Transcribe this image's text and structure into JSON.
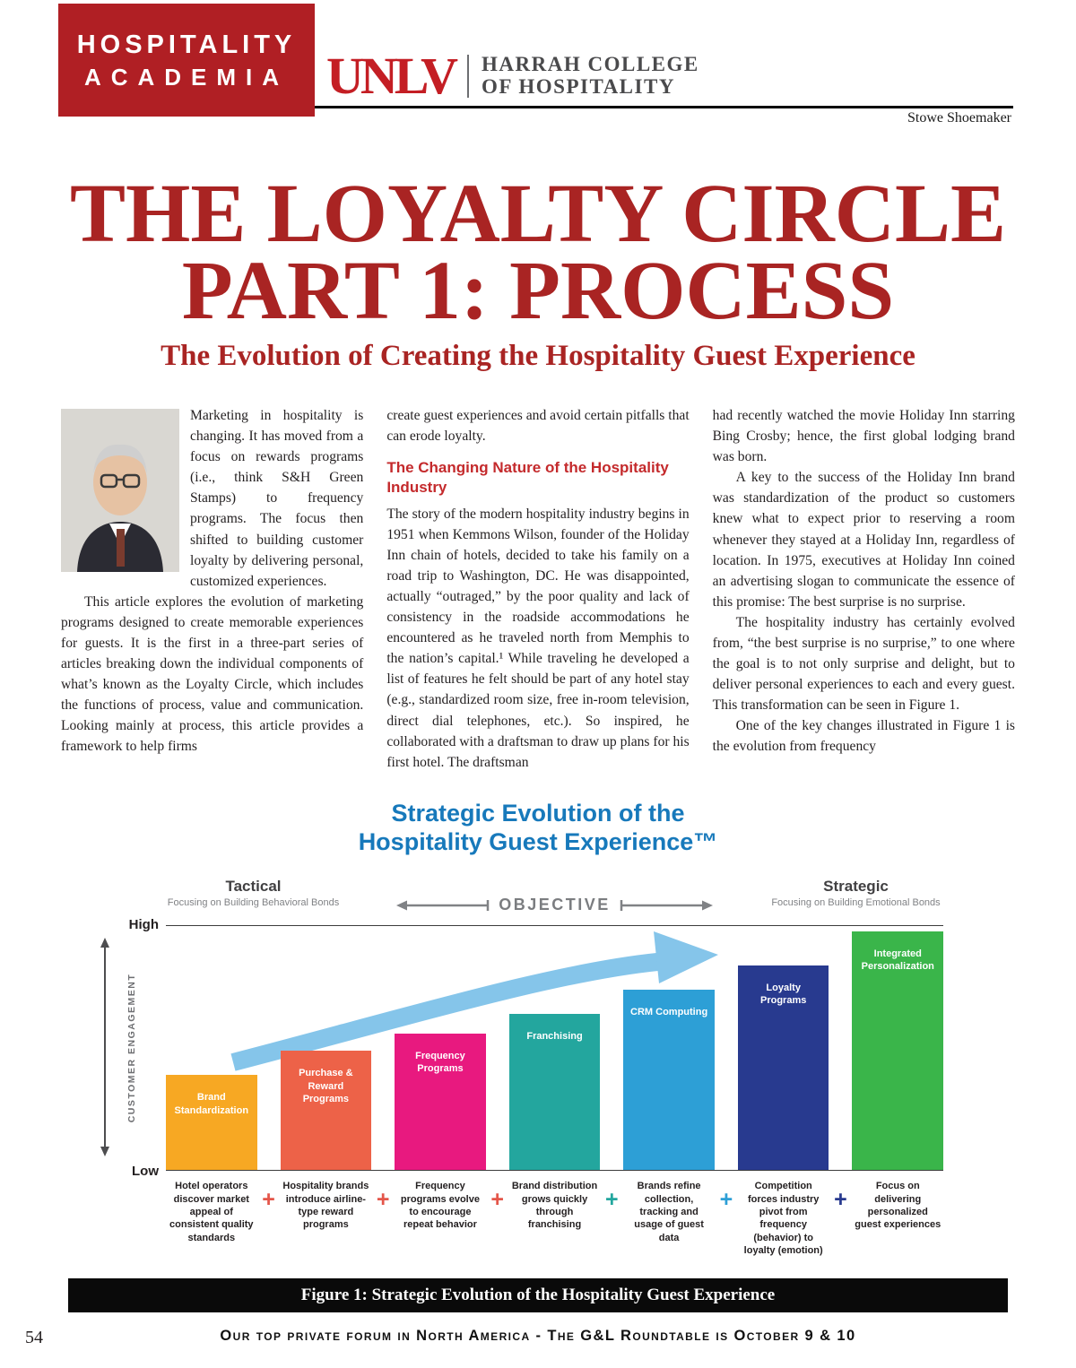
{
  "theme": {
    "brand_red": "#b01f24",
    "title_red": "#a92423",
    "heading_red": "#c42a2c",
    "chart_blue": "#1779bb",
    "unlv_red": "#c41e24",
    "arrow_blue": "#85c5ea"
  },
  "header": {
    "banner_line1": "HOSPITALITY",
    "banner_line2": "ACADEMIA",
    "logo_text": "UNLV",
    "college_line1": "HARRAH COLLEGE",
    "college_line2": "OF HOSPITALITY",
    "author": "Stowe Shoemaker"
  },
  "title": {
    "line1": "THE LOYALTY CIRCLE",
    "line2": "PART 1: PROCESS",
    "subtitle": "The Evolution of Creating the Hospitality Guest Experience"
  },
  "article": {
    "col1": {
      "p1": "Marketing in hospitality is changing. It has moved from a focus on rewards programs (i.e., think S&H Green Stamps) to frequency programs. The focus then shifted to building customer loyalty by delivering personal, customized experiences.",
      "p2": "This article explores the evolution of marketing programs designed to create memorable experiences for guests. It is the first in a three-part series of articles breaking down the individual components of what’s known as the Loyalty Circle, which includes the functions of process, value and communication. Looking mainly at process, this article provides a framework to help firms"
    },
    "col2": {
      "p1": "create guest experiences and avoid certain pitfalls that can erode loyalty.",
      "heading": "The Changing Nature of the Hospitality Industry",
      "p2": "The story of the modern hospitality industry begins in 1951 when Kemmons Wilson, founder of the Holiday Inn chain of hotels, decided to take his family on a road trip to Washington, DC. He was disappointed, actually “outraged,” by the poor quality and lack of consistency in the roadside accommodations he encountered as he traveled north from Memphis to the nation’s capital.¹ While traveling he developed a list of features he felt should be part of any hotel stay (e.g., standardized room size, free in-room television, direct dial telephones, etc.). So inspired, he collaborated with a draftsman to draw up plans for his first hotel. The draftsman"
    },
    "col3": {
      "p1": "had recently watched the movie Holiday Inn starring Bing Crosby; hence, the first global lodging brand was born.",
      "p2": "A key to the success of the Holiday Inn brand was standardization of the product so customers knew what to expect prior to reserving a room whenever they stayed at a Holiday Inn, regardless of location. In 1975, executives at Holiday Inn coined an advertising slogan to communicate the essence of this promise: The best surprise is no surprise.",
      "p3": "The hospitality industry has certainly evolved from, “the best surprise is no surprise,” to one where the goal is to not only surprise and delight, but to deliver personal experiences to each and every guest. This transformation can be seen in Figure 1.",
      "p4": "One of the key changes illustrated in Figure 1 is the evolution from frequency"
    }
  },
  "figure_caption": "Figure 1: Strategic Evolution of the Hospitality Guest Experience",
  "footer": {
    "page_number": "54",
    "banner_text": "Our top private forum in North America - The G&L Roundtable is October 9 & 10"
  },
  "chart_data": {
    "type": "bar",
    "title": "Strategic Evolution of the Hospitality Guest Experience™",
    "title_line1": "Strategic Evolution of the",
    "title_line2": "Hospitality Guest Experience™",
    "ylabel": "CUSTOMER ENGAGEMENT",
    "y_axis_top": "High",
    "y_axis_bottom": "Low",
    "ylim": [
      "Low",
      "High"
    ],
    "objective_label": "OBJECTIVE",
    "left_anchor": {
      "label": "Tactical",
      "sub": "Focusing on Building Behavioral Bonds"
    },
    "right_anchor": {
      "label": "Strategic",
      "sub": "Focusing on Building Emotional Bonds"
    },
    "categories": [
      "Brand Standardization",
      "Purchase & Reward Programs",
      "Frequency Programs",
      "Franchising",
      "CRM Computing",
      "Loyalty Programs",
      "Integrated Personalization"
    ],
    "values": [
      39,
      49,
      56,
      64,
      74,
      84,
      98
    ],
    "value_scale": "relative customer engagement, Low=0 to High=100, estimated from bar heights",
    "colors": [
      "#f7a823",
      "#ed6248",
      "#e8197f",
      "#23a69e",
      "#2d9fd6",
      "#283a8f",
      "#3ab54a"
    ],
    "plus_colors": [
      "#e4564a",
      "#e4564a",
      "#e4564a",
      "#23a69e",
      "#2d9fd6",
      "#283a8f"
    ],
    "captions": [
      "Hotel operators discover market appeal of consistent quality standards",
      "Hospitality brands introduce airline-type reward programs",
      "Frequency programs evolve to encourage repeat behavior",
      "Brand distribution grows quickly through franchising",
      "Brands refine collection, tracking and usage of guest data",
      "Competition forces industry pivot from frequency (behavior) to loyalty (emotion)",
      "Focus on delivering personalized guest experiences"
    ],
    "legend_position": "none",
    "grid": false
  }
}
